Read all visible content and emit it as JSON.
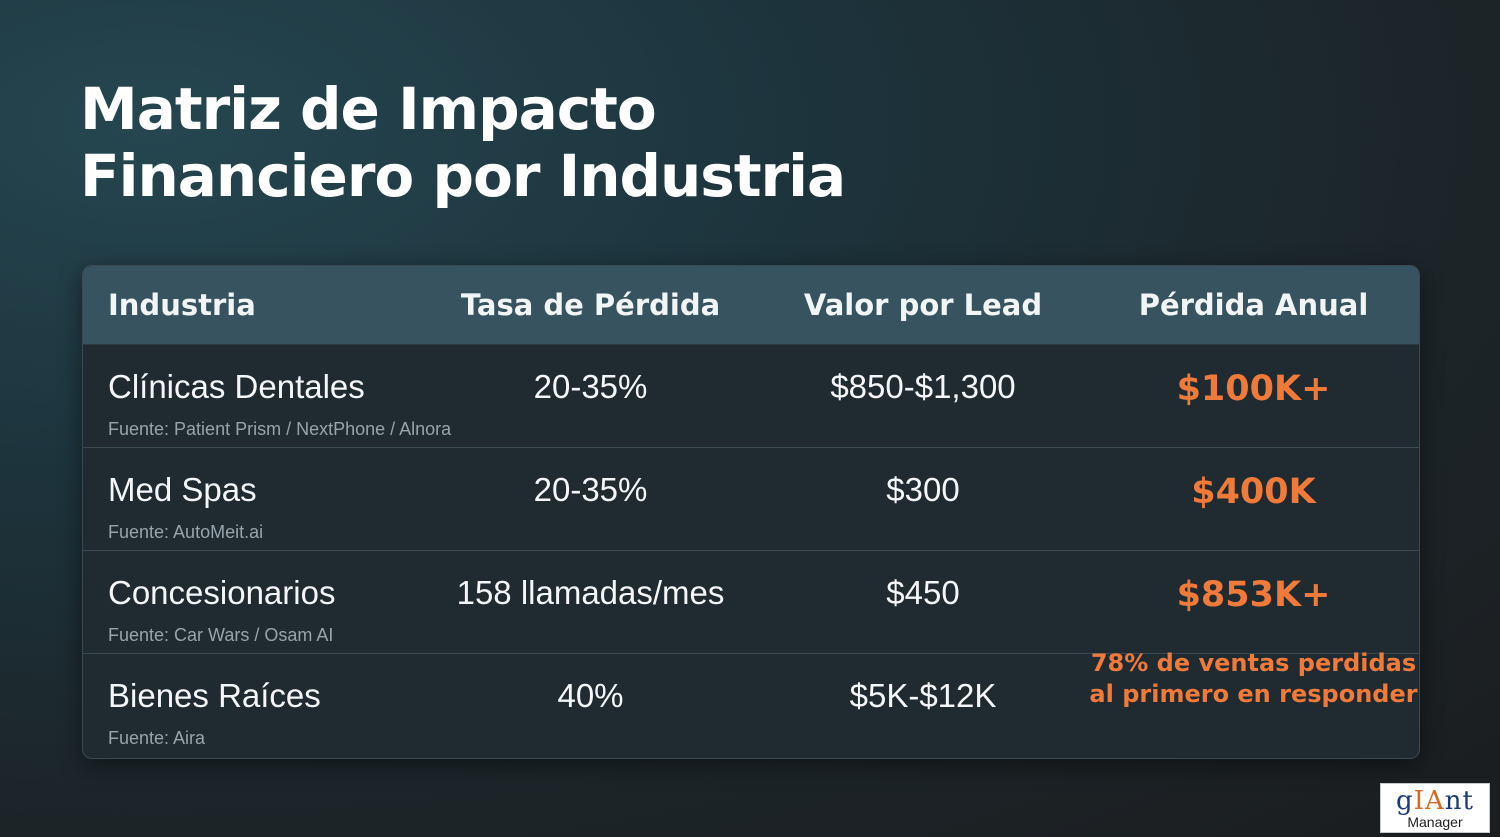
{
  "title": {
    "line1": "Matriz de Impacto",
    "line2": "Financiero por Industria"
  },
  "table": {
    "headers": [
      "Industria",
      "Tasa de Pérdida",
      "Valor por Lead",
      "Pérdida Anual"
    ],
    "rows": [
      {
        "industry": "Clínicas Dentales",
        "source": "Fuente: Patient Prism / NextPhone / Alnora",
        "rate": "20-35%",
        "value": "$850-$1,300",
        "loss": "$100K+"
      },
      {
        "industry": "Med Spas",
        "source": "Fuente: AutoMeit.ai",
        "rate": "20-35%",
        "value": "$300",
        "loss": "$400K"
      },
      {
        "industry": "Concesionarios",
        "source": "Fuente: Car Wars / Osam AI",
        "rate": "158 llamadas/mes",
        "value": "$450",
        "loss": "$853K+"
      },
      {
        "industry": "Bienes Raíces",
        "source": "Fuente: Aira",
        "rate": "40%",
        "value": "$5K-$12K",
        "loss_line1": "78% de ventas perdidas",
        "loss_line2": "al primero en responder"
      }
    ]
  },
  "colors": {
    "accent": "#f07a3a",
    "header_bg": "#36535f",
    "table_bg": "#1f2a31"
  },
  "logo": {
    "text_pre": "g",
    "text_accent": "IA",
    "text_post": "nt",
    "subtitle": "Manager"
  }
}
